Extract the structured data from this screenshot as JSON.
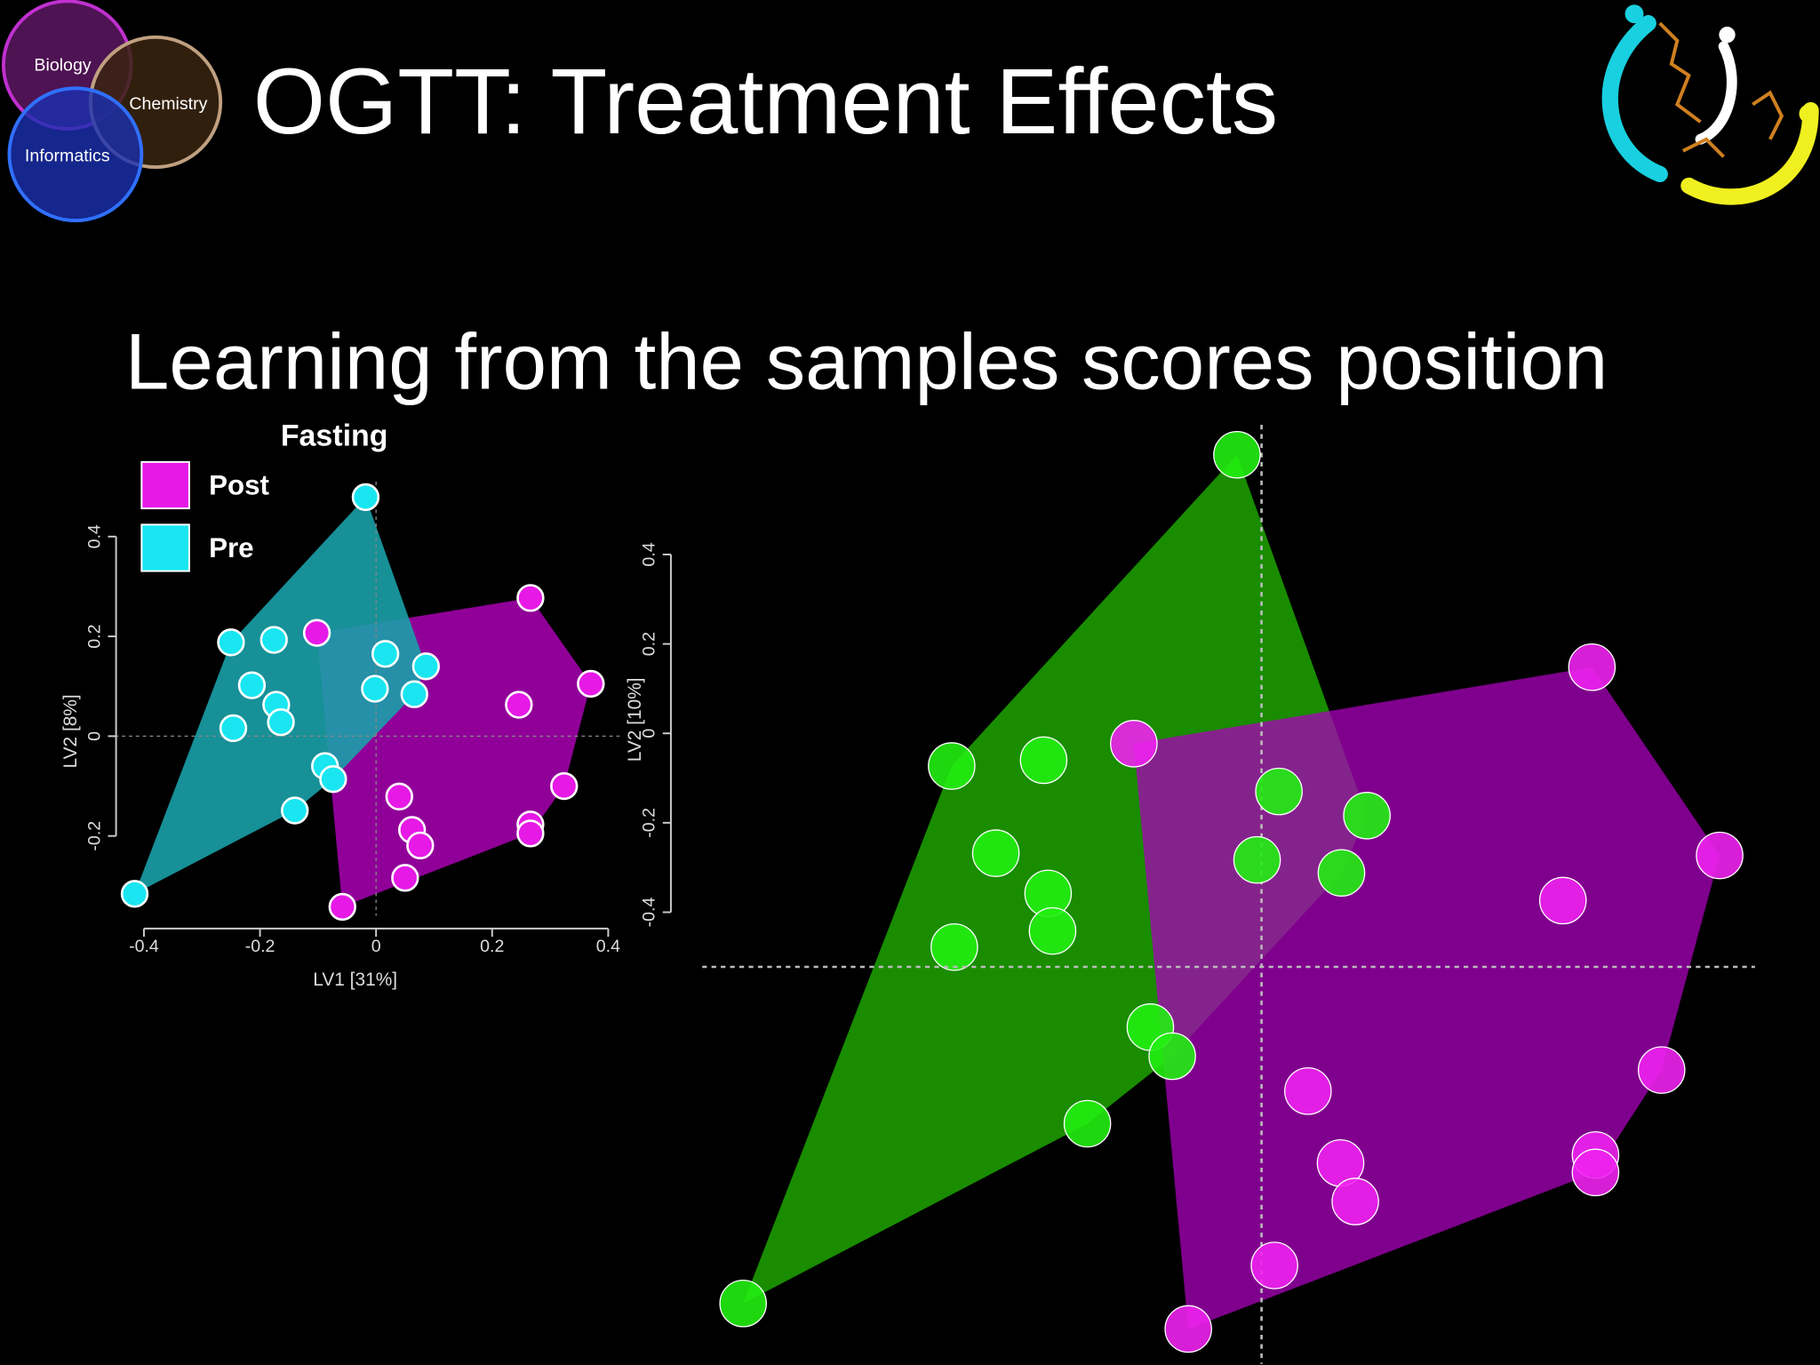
{
  "header": {
    "title": "OGTT: Treatment Effects",
    "subtitle": "Learning from the samples scores position"
  },
  "logo": {
    "labels": [
      "Biology",
      "Chemistry",
      "Informatics"
    ]
  },
  "chart_data": [
    {
      "type": "scatter",
      "title": "Fasting",
      "xlabel": "LV1 [31%]",
      "ylabel": "LV2 [8%]",
      "xlim": [
        -0.45,
        0.42
      ],
      "ylim": [
        -0.36,
        0.51
      ],
      "xticks": [
        -0.4,
        -0.2,
        0,
        0.2,
        0.4
      ],
      "yticks": [
        -0.2,
        0,
        0.2,
        0.4
      ],
      "legend": "top-left",
      "series": [
        {
          "name": "Post",
          "color": "#e619e6",
          "x": [
            -0.102,
            0.266,
            0.37,
            0.246,
            0.324,
            0.266,
            0.266,
            0.04,
            0.062,
            0.076,
            0.05,
            -0.058
          ],
          "values": [
            0.207,
            0.277,
            0.105,
            0.063,
            -0.1,
            -0.177,
            -0.195,
            -0.121,
            -0.188,
            -0.219,
            -0.284,
            -0.342
          ]
        },
        {
          "name": "Pre",
          "color": "#19e6f0",
          "x": [
            -0.018,
            -0.25,
            -0.176,
            -0.214,
            -0.172,
            -0.164,
            -0.246,
            -0.088,
            -0.074,
            -0.14,
            -0.416,
            0.016,
            0.086,
            -0.002,
            0.066
          ],
          "values": [
            0.479,
            0.188,
            0.193,
            0.102,
            0.063,
            0.028,
            0.016,
            -0.06,
            -0.086,
            -0.149,
            -0.316,
            0.165,
            0.14,
            0.095,
            0.084
          ]
        }
      ]
    },
    {
      "type": "scatter",
      "ylabel": "LV2 [10%]",
      "xlim": [
        -1.25,
        1.1
      ],
      "ylim": [
        -1.41,
        0.69
      ],
      "yticks": [
        -0.4,
        -0.2,
        0,
        0.2,
        0.4
      ],
      "series": [
        {
          "color": "#22ee11",
          "x": [
            -0.055,
            -0.694,
            -0.488,
            0.039,
            0.236,
            -0.01,
            0.179,
            -0.595,
            -0.478,
            -0.468,
            -0.688,
            -0.249,
            -0.2,
            -0.39,
            -1.161
          ],
          "values": [
            0.623,
            -0.073,
            -0.06,
            -0.13,
            -0.184,
            -0.283,
            -0.312,
            -0.268,
            -0.358,
            -0.442,
            -0.478,
            -0.657,
            -0.722,
            -0.873,
            -1.275
          ]
        },
        {
          "color": "#ee22ee",
          "x": [
            -0.286,
            0.74,
            1.026,
            0.675,
            0.104,
            0.896,
            0.748,
            0.748,
            0.177,
            0.21,
            0.029,
            -0.164
          ],
          "values": [
            -0.023,
            0.148,
            -0.273,
            -0.374,
            -0.8,
            -0.753,
            -0.943,
            -0.982,
            -0.961,
            -1.047,
            -1.19,
            -1.332
          ]
        }
      ]
    }
  ]
}
